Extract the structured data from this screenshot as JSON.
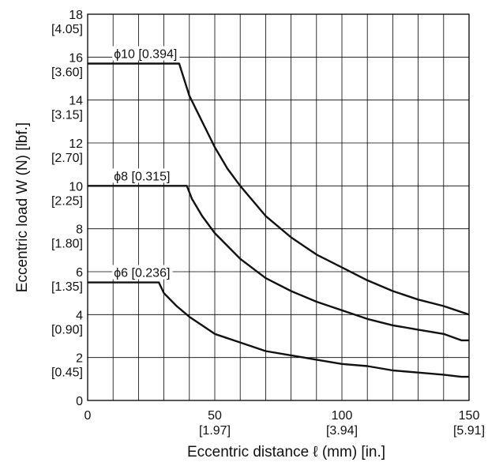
{
  "chart_data": {
    "type": "line",
    "xlabel": "Eccentric distance  ℓ (mm) [in.]",
    "ylabel": "Eccentric load W (N) [lbf.]",
    "xlim": [
      0,
      150
    ],
    "ylim": [
      0,
      18
    ],
    "grid": true,
    "x_ticks": [
      {
        "value": 0,
        "label": "0",
        "sublabel": ""
      },
      {
        "value": 50,
        "label": "50",
        "sublabel": "[1.97]"
      },
      {
        "value": 100,
        "label": "100",
        "sublabel": "[3.94]"
      },
      {
        "value": 150,
        "label": "150",
        "sublabel": "[5.91]"
      }
    ],
    "y_ticks": [
      {
        "value": 0,
        "label": "0",
        "sublabel": ""
      },
      {
        "value": 2,
        "label": "2",
        "sublabel": "[0.45]"
      },
      {
        "value": 4,
        "label": "4",
        "sublabel": "[0.90]"
      },
      {
        "value": 6,
        "label": "6",
        "sublabel": "[1.35]"
      },
      {
        "value": 8,
        "label": "8",
        "sublabel": "[1.80]"
      },
      {
        "value": 10,
        "label": "10",
        "sublabel": "[2.25]"
      },
      {
        "value": 12,
        "label": "12",
        "sublabel": "[2.70]"
      },
      {
        "value": 14,
        "label": "14",
        "sublabel": "[3.15]"
      },
      {
        "value": 16,
        "label": "16",
        "sublabel": "[3.60]"
      },
      {
        "value": 18,
        "label": "18",
        "sublabel": "[4.05]"
      }
    ],
    "series": [
      {
        "name": "ϕ10 [0.394]",
        "x": [
          0,
          36,
          40,
          45,
          50,
          55,
          60,
          70,
          80,
          90,
          100,
          110,
          120,
          130,
          140,
          150
        ],
        "y": [
          15.7,
          15.7,
          14.2,
          13.0,
          11.8,
          10.8,
          10.0,
          8.6,
          7.6,
          6.8,
          6.2,
          5.6,
          5.1,
          4.7,
          4.4,
          4.0
        ]
      },
      {
        "name": "ϕ8 [0.315]",
        "x": [
          0,
          39,
          41,
          45,
          50,
          55,
          60,
          70,
          80,
          90,
          100,
          110,
          120,
          130,
          140,
          147,
          150
        ],
        "y": [
          10.0,
          10.0,
          9.4,
          8.6,
          7.8,
          7.2,
          6.6,
          5.7,
          5.1,
          4.6,
          4.2,
          3.8,
          3.5,
          3.3,
          3.1,
          2.8,
          2.8
        ]
      },
      {
        "name": "ϕ6 [0.236]",
        "x": [
          0,
          28,
          30,
          35,
          40,
          45,
          50,
          60,
          70,
          80,
          90,
          100,
          110,
          120,
          130,
          140,
          147,
          150
        ],
        "y": [
          5.5,
          5.5,
          5.0,
          4.4,
          3.9,
          3.5,
          3.1,
          2.7,
          2.3,
          2.1,
          1.9,
          1.7,
          1.6,
          1.4,
          1.3,
          1.2,
          1.1,
          1.1
        ]
      }
    ]
  }
}
